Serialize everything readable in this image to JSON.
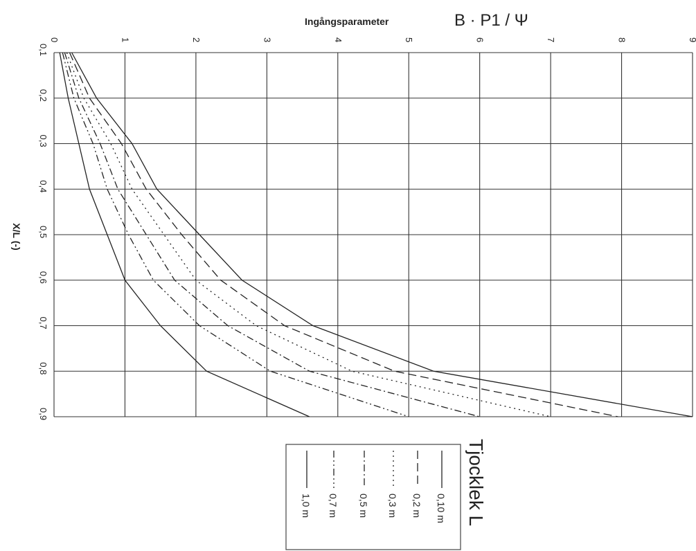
{
  "chart_data": {
    "type": "line",
    "title_parameter": "Ingångsparameter",
    "title_formula": "B · P1 / Ψ",
    "xlabel": "X/L (-)",
    "x": [
      0.1,
      0.2,
      0.3,
      0.4,
      0.5,
      0.6,
      0.7,
      0.8,
      0.9
    ],
    "x_tick_labels": [
      "0,1",
      "0,2",
      "0,3",
      "0,4",
      "0,5",
      "0,6",
      "0,7",
      "0,8",
      "0,9"
    ],
    "ylim": [
      0,
      9
    ],
    "y_ticks": [
      0,
      1,
      2,
      3,
      4,
      5,
      6,
      7,
      8,
      9
    ],
    "grid": true,
    "orientation": "rotated 90° clockwise",
    "legend": {
      "title": "Tjocklek L",
      "position": "bottom-right"
    },
    "series": [
      {
        "name": "0,10 m",
        "dash": "solid",
        "values": [
          0.25,
          0.6,
          1.1,
          1.45,
          2.05,
          2.65,
          3.65,
          5.35,
          9.0
        ]
      },
      {
        "name": "0,2 m",
        "dash": "long-dash",
        "values": [
          0.22,
          0.5,
          0.95,
          1.3,
          1.8,
          2.35,
          3.25,
          4.8,
          7.95
        ]
      },
      {
        "name": "0,3 m",
        "dash": "dot",
        "values": [
          0.18,
          0.42,
          0.8,
          1.1,
          1.55,
          2.0,
          2.85,
          4.2,
          7.0
        ]
      },
      {
        "name": "0,5 m",
        "dash": "dash-dot",
        "values": [
          0.15,
          0.35,
          0.65,
          0.9,
          1.3,
          1.7,
          2.45,
          3.6,
          6.0
        ]
      },
      {
        "name": "0,7 m",
        "dash": "dash-dot-dot",
        "values": [
          0.12,
          0.28,
          0.55,
          0.75,
          1.05,
          1.4,
          2.05,
          3.05,
          5.0
        ]
      },
      {
        "name": "1,0 m",
        "dash": "solid",
        "values": [
          0.08,
          0.2,
          0.35,
          0.5,
          0.75,
          1.0,
          1.5,
          2.15,
          3.6
        ]
      }
    ]
  }
}
